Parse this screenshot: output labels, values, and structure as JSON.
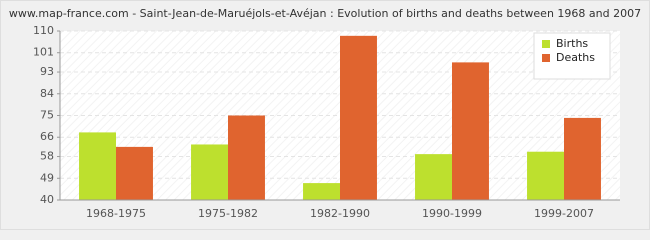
{
  "chart_data": {
    "type": "bar",
    "title": "www.map-france.com - Saint-Jean-de-Maruéjols-et-Avéjan : Evolution of births and deaths between 1968 and 2007",
    "categories": [
      "1968-1975",
      "1975-1982",
      "1982-1990",
      "1990-1999",
      "1999-2007"
    ],
    "series": [
      {
        "name": "Births",
        "color": "#bde02e",
        "values": [
          68,
          63,
          47,
          59,
          60
        ]
      },
      {
        "name": "Deaths",
        "color": "#e0642f",
        "values": [
          62,
          75,
          108,
          97,
          74
        ]
      }
    ],
    "ylim": [
      40,
      110
    ],
    "yticks": [
      40,
      49,
      58,
      66,
      75,
      84,
      93,
      101,
      110
    ],
    "grid": true,
    "legend": "upper right"
  }
}
